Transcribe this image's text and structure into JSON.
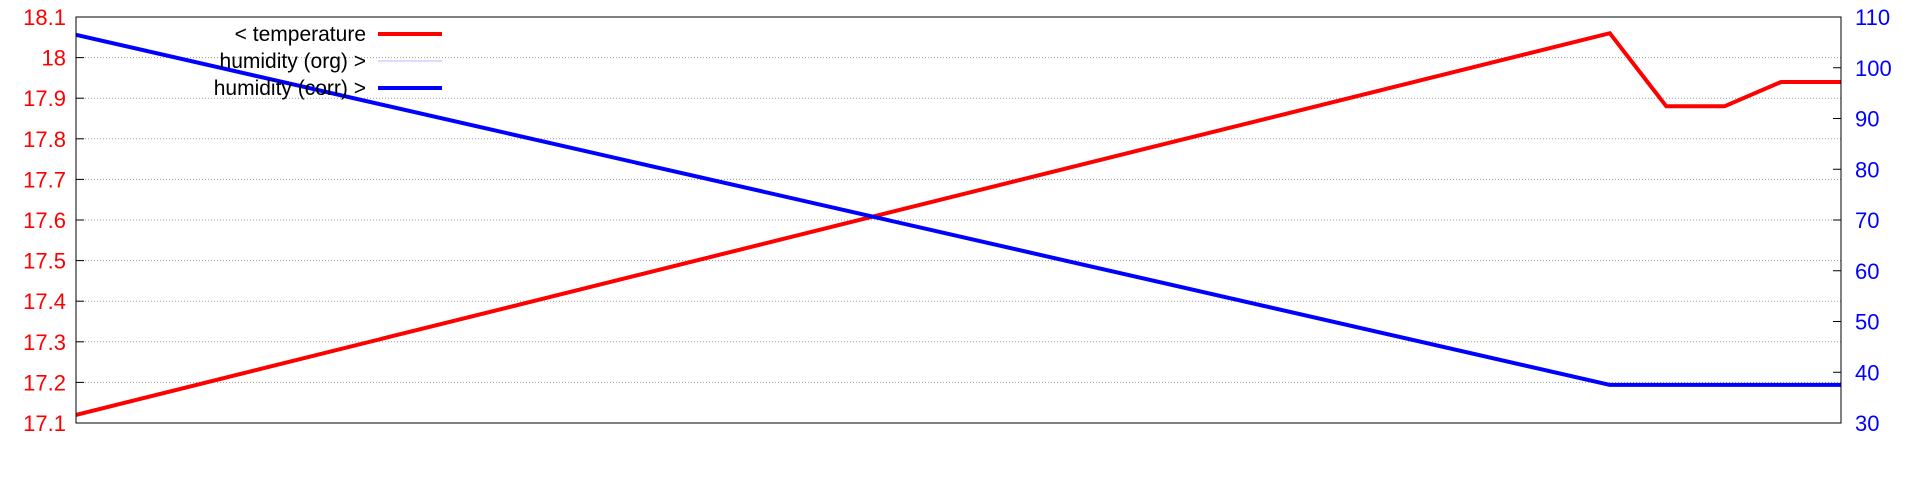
{
  "chart_data": {
    "type": "line",
    "title": "",
    "xlabel": "",
    "grid": "horizontal dotted",
    "legend_position": "top-left",
    "y_left": {
      "ylim": [
        17.1,
        18.1
      ],
      "ticks": [
        17.1,
        17.2,
        17.3,
        17.4,
        17.5,
        17.6,
        17.7,
        17.8,
        17.9,
        18,
        18.1
      ],
      "tick_labels": [
        "17.1",
        "17.2",
        "17.3",
        "17.4",
        "17.5",
        "17.6",
        "17.7",
        "17.8",
        "17.9",
        "18",
        "18.1"
      ],
      "color": "#ff0000"
    },
    "y_right": {
      "ylim": [
        30,
        110
      ],
      "ticks": [
        30,
        40,
        50,
        60,
        70,
        80,
        90,
        100,
        110
      ],
      "tick_labels": [
        "30",
        "40",
        "50",
        "60",
        "70",
        "80",
        "90",
        "100",
        "110"
      ],
      "color": "#0000ff"
    },
    "x_range": [
      0,
      1
    ],
    "series": [
      {
        "name": "< temperature",
        "axis": "left",
        "color": "#ff0000",
        "points": [
          [
            0,
            17.12
          ],
          [
            0.869,
            18.06
          ],
          [
            0.901,
            17.88
          ],
          [
            0.934,
            17.88
          ],
          [
            0.966,
            17.94
          ],
          [
            1.0,
            17.94
          ]
        ]
      },
      {
        "name": "humidity (org) >",
        "axis": "right",
        "color": "#b8b8ff",
        "points": []
      },
      {
        "name": "humidity (corr) >",
        "axis": "right",
        "color": "#0000ff",
        "points": [
          [
            0,
            106.5
          ],
          [
            0.869,
            37.5
          ],
          [
            1.0,
            37.5
          ]
        ]
      }
    ]
  }
}
